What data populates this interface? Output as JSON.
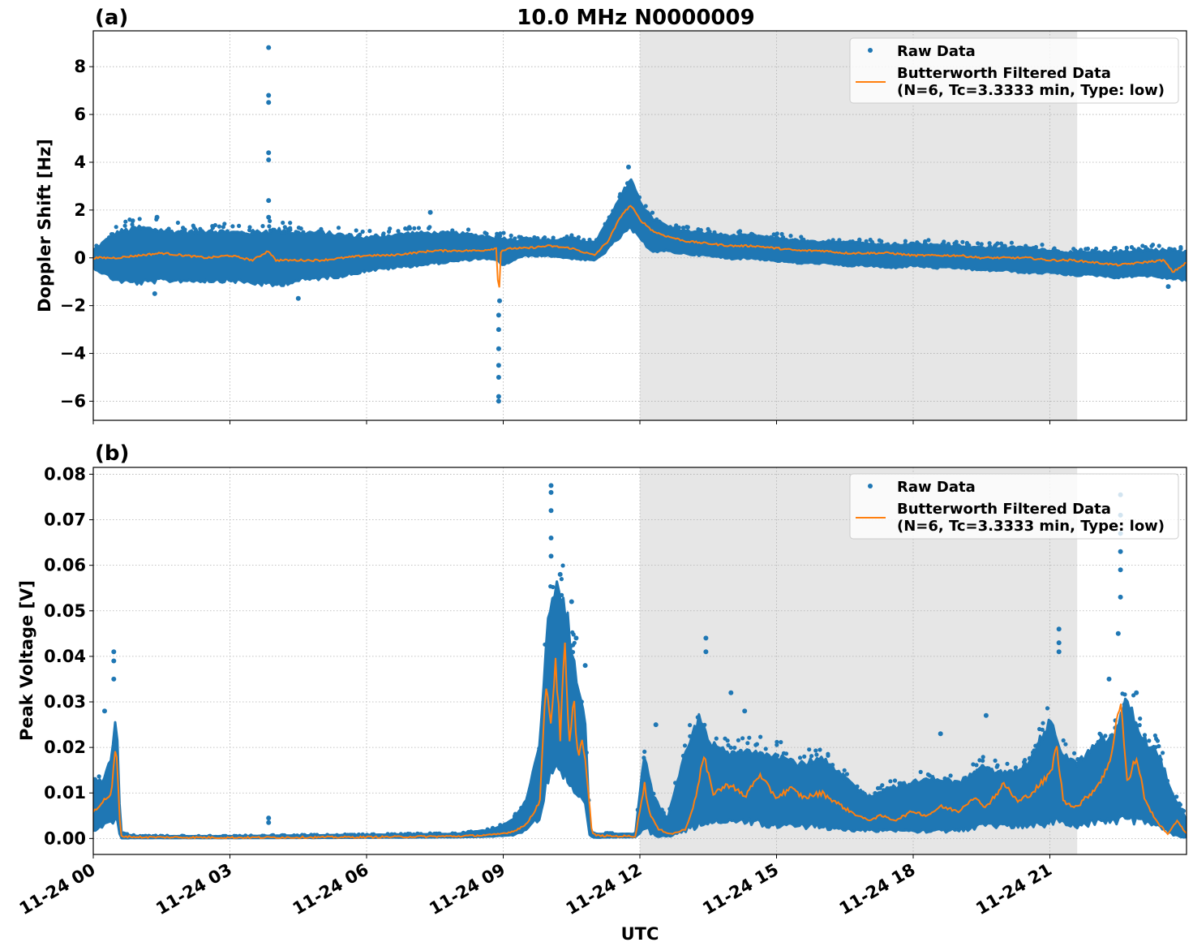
{
  "figure": {
    "title": "10.0 MHz N0000009",
    "xlabel": "UTC",
    "x_range_hours": [
      0,
      24
    ],
    "daytime_shading_hours": [
      12,
      21.6
    ],
    "legend_location": "upper right",
    "grid": true,
    "colors": {
      "raw": "#1f77b4",
      "filtered": "#ff7f0e",
      "shade": "#e6e6e6",
      "grid": "#b0b0b0"
    }
  },
  "chart_data": [
    {
      "id": "a",
      "panel_label": "(a)",
      "type": "scatter",
      "ylabel": "Doppler Shift [Hz]",
      "ylim": [
        -6.8,
        9.5
      ],
      "yticks": [
        -6,
        -4,
        -2,
        0,
        2,
        4,
        6,
        8
      ],
      "ytick_labels": [
        "−6",
        "−4",
        "−2",
        "0",
        "2",
        "4",
        "6",
        "8"
      ],
      "x_hours_ticks": [
        0,
        3,
        6,
        9,
        12,
        15,
        18,
        21
      ],
      "series": [
        {
          "name": "Raw Data",
          "kind": "points-envelope",
          "x_hours": [
            0,
            0.5,
            1,
            1.5,
            2,
            2.5,
            3,
            3.5,
            4,
            4.5,
            5,
            5.5,
            6,
            6.5,
            7,
            7.5,
            8,
            8.5,
            8.9,
            9.0,
            9.3,
            9.5,
            10,
            10.5,
            11,
            11.2,
            11.5,
            11.8,
            12,
            12.3,
            12.6,
            13,
            13.5,
            14,
            14.5,
            15,
            15.5,
            16,
            16.5,
            17,
            17.5,
            18,
            18.5,
            19,
            19.5,
            20,
            20.5,
            21,
            21.5,
            22,
            22.5,
            23,
            23.5,
            24
          ],
          "upper": [
            0.3,
            1.0,
            1.2,
            1.1,
            1.0,
            1.1,
            1.0,
            1.0,
            1.1,
            1.0,
            1.0,
            0.9,
            0.8,
            0.9,
            1.0,
            1.0,
            1.0,
            0.9,
            0.8,
            0.8,
            0.7,
            0.8,
            0.7,
            0.8,
            0.6,
            1.2,
            2.2,
            3.3,
            2.3,
            1.6,
            1.3,
            1.1,
            1.0,
            0.9,
            0.9,
            0.8,
            0.7,
            0.6,
            0.6,
            0.6,
            0.5,
            0.6,
            0.5,
            0.5,
            0.4,
            0.4,
            0.4,
            0.3,
            0.2,
            0.2,
            0.2,
            0.3,
            0.3,
            0.2
          ],
          "lower": [
            -0.4,
            -0.9,
            -1.0,
            -0.9,
            -0.9,
            -0.9,
            -0.9,
            -1.0,
            -1.1,
            -0.9,
            -0.8,
            -0.7,
            -0.5,
            -0.4,
            -0.3,
            -0.2,
            -0.1,
            0.0,
            -0.1,
            -0.3,
            0.0,
            0.1,
            0.1,
            0.0,
            -0.1,
            0.2,
            0.8,
            1.3,
            0.8,
            0.3,
            0.3,
            0.2,
            0.1,
            0.0,
            0.0,
            -0.1,
            -0.2,
            -0.2,
            -0.3,
            -0.3,
            -0.4,
            -0.3,
            -0.4,
            -0.4,
            -0.5,
            -0.5,
            -0.6,
            -0.6,
            -0.7,
            -0.7,
            -0.8,
            -0.7,
            -0.8,
            -0.9
          ],
          "outliers": [
            {
              "x": 3.85,
              "y": 8.8
            },
            {
              "x": 3.85,
              "y": 6.8
            },
            {
              "x": 3.85,
              "y": 6.5
            },
            {
              "x": 3.85,
              "y": 4.4
            },
            {
              "x": 3.85,
              "y": 4.1
            },
            {
              "x": 3.85,
              "y": 2.4
            },
            {
              "x": 3.85,
              "y": 1.7
            },
            {
              "x": 1.4,
              "y": 1.7
            },
            {
              "x": 7.4,
              "y": 1.9
            },
            {
              "x": 8.9,
              "y": -6.0
            },
            {
              "x": 8.9,
              "y": -5.8
            },
            {
              "x": 8.9,
              "y": -5.0
            },
            {
              "x": 8.9,
              "y": -4.5
            },
            {
              "x": 8.9,
              "y": -3.8
            },
            {
              "x": 8.9,
              "y": -3.0
            },
            {
              "x": 8.9,
              "y": -2.4
            },
            {
              "x": 8.92,
              "y": -1.8
            },
            {
              "x": 1.35,
              "y": -1.5
            },
            {
              "x": 4.5,
              "y": -1.7
            },
            {
              "x": 11.75,
              "y": 3.8
            },
            {
              "x": 23.6,
              "y": -1.2
            }
          ]
        },
        {
          "name": "Butterworth Filtered Data\n(N=6, Tc=3.3333 min, Type: low)",
          "kind": "line",
          "x_hours": [
            0,
            0.5,
            1,
            1.5,
            2,
            2.5,
            3,
            3.5,
            3.85,
            4,
            4.5,
            5,
            5.5,
            6,
            6.5,
            7,
            7.5,
            8,
            8.5,
            8.85,
            8.9,
            8.95,
            9.2,
            9.5,
            10,
            10.5,
            11,
            11.3,
            11.6,
            11.8,
            12,
            12.3,
            12.6,
            13,
            13.5,
            14,
            14.5,
            15,
            15.5,
            16,
            16.5,
            17,
            17.5,
            18,
            18.5,
            19,
            19.5,
            20,
            20.5,
            21,
            21.5,
            22,
            22.5,
            23,
            23.5,
            23.7,
            24
          ],
          "y": [
            0.0,
            0.0,
            0.1,
            0.2,
            0.1,
            0.0,
            0.1,
            -0.1,
            0.3,
            -0.1,
            -0.1,
            -0.1,
            0.0,
            0.1,
            0.1,
            0.2,
            0.3,
            0.3,
            0.3,
            0.4,
            -1.8,
            0.3,
            0.4,
            0.4,
            0.5,
            0.4,
            0.1,
            0.7,
            1.8,
            2.2,
            1.6,
            1.1,
            0.9,
            0.7,
            0.6,
            0.5,
            0.5,
            0.4,
            0.3,
            0.3,
            0.2,
            0.2,
            0.2,
            0.1,
            0.1,
            0.1,
            0.0,
            0.0,
            0.0,
            -0.1,
            -0.1,
            -0.2,
            -0.3,
            -0.2,
            -0.1,
            -0.6,
            -0.2
          ]
        }
      ]
    },
    {
      "id": "b",
      "panel_label": "(b)",
      "type": "scatter",
      "ylabel": "Peak Voltage [V]",
      "ylim": [
        -0.0035,
        0.0815
      ],
      "yticks": [
        0.0,
        0.01,
        0.02,
        0.03,
        0.04,
        0.05,
        0.06,
        0.07,
        0.08
      ],
      "ytick_labels": [
        "0.00",
        "0.01",
        "0.02",
        "0.03",
        "0.04",
        "0.05",
        "0.06",
        "0.07",
        "0.08"
      ],
      "x_hours_ticks": [
        0,
        3,
        6,
        9,
        12,
        15,
        18,
        21
      ],
      "xtick_labels": [
        "11-24 00",
        "11-24 03",
        "11-24 06",
        "11-24 09",
        "11-24 12",
        "11-24 15",
        "11-24 18",
        "11-24 21"
      ],
      "series": [
        {
          "name": "Raw Data",
          "kind": "points-envelope",
          "x_hours": [
            0,
            0.2,
            0.4,
            0.5,
            0.6,
            1,
            3,
            6,
            8,
            8.8,
            9.2,
            9.5,
            9.8,
            10.0,
            10.2,
            10.4,
            10.6,
            10.8,
            10.9,
            11.0,
            11.5,
            11.9,
            12.1,
            12.3,
            12.6,
            13.0,
            13.3,
            13.6,
            14.0,
            14.5,
            15.0,
            15.5,
            16.0,
            16.5,
            17.0,
            17.5,
            18.0,
            18.5,
            19.0,
            19.5,
            20.0,
            20.5,
            21.0,
            21.3,
            21.6,
            22.0,
            22.4,
            22.7,
            23.0,
            23.4,
            23.7,
            24
          ],
          "upper": [
            0.013,
            0.012,
            0.018,
            0.028,
            0.001,
            0.0005,
            0.0005,
            0.0008,
            0.001,
            0.002,
            0.004,
            0.008,
            0.02,
            0.05,
            0.055,
            0.048,
            0.035,
            0.025,
            0.002,
            0.001,
            0.001,
            0.001,
            0.018,
            0.009,
            0.004,
            0.018,
            0.026,
            0.02,
            0.018,
            0.019,
            0.018,
            0.016,
            0.017,
            0.013,
            0.009,
            0.011,
            0.012,
            0.013,
            0.012,
            0.015,
            0.014,
            0.016,
            0.025,
            0.018,
            0.016,
            0.02,
            0.022,
            0.03,
            0.022,
            0.018,
            0.009,
            0.004
          ],
          "lower": [
            0.002,
            0.003,
            0.004,
            0.005,
            0.0001,
            0.0001,
            0.0001,
            0.0002,
            0.0003,
            0.0005,
            0.0008,
            0.002,
            0.005,
            0.015,
            0.018,
            0.014,
            0.01,
            0.008,
            0.0005,
            0.0002,
            0.0003,
            0.0003,
            0.003,
            0.001,
            0.0005,
            0.002,
            0.004,
            0.004,
            0.004,
            0.004,
            0.003,
            0.003,
            0.003,
            0.002,
            0.002,
            0.002,
            0.002,
            0.002,
            0.002,
            0.003,
            0.003,
            0.003,
            0.004,
            0.004,
            0.003,
            0.004,
            0.004,
            0.005,
            0.004,
            0.003,
            0.001,
            0.0003
          ],
          "outliers": [
            {
              "x": 0.45,
              "y": 0.041
            },
            {
              "x": 0.45,
              "y": 0.039
            },
            {
              "x": 0.45,
              "y": 0.035
            },
            {
              "x": 0.25,
              "y": 0.028
            },
            {
              "x": 3.85,
              "y": 0.0045
            },
            {
              "x": 3.85,
              "y": 0.0035
            },
            {
              "x": 10.05,
              "y": 0.0775
            },
            {
              "x": 10.05,
              "y": 0.076
            },
            {
              "x": 10.05,
              "y": 0.072
            },
            {
              "x": 10.05,
              "y": 0.066
            },
            {
              "x": 10.05,
              "y": 0.062
            },
            {
              "x": 10.25,
              "y": 0.058
            },
            {
              "x": 10.5,
              "y": 0.052
            },
            {
              "x": 10.6,
              "y": 0.044
            },
            {
              "x": 10.8,
              "y": 0.038
            },
            {
              "x": 12.35,
              "y": 0.025
            },
            {
              "x": 13.45,
              "y": 0.044
            },
            {
              "x": 13.45,
              "y": 0.041
            },
            {
              "x": 14.0,
              "y": 0.032
            },
            {
              "x": 14.3,
              "y": 0.028
            },
            {
              "x": 21.2,
              "y": 0.046
            },
            {
              "x": 21.2,
              "y": 0.043
            },
            {
              "x": 21.2,
              "y": 0.041
            },
            {
              "x": 18.6,
              "y": 0.023
            },
            {
              "x": 19.6,
              "y": 0.027
            },
            {
              "x": 22.55,
              "y": 0.0755
            },
            {
              "x": 22.55,
              "y": 0.071
            },
            {
              "x": 22.55,
              "y": 0.067
            },
            {
              "x": 22.55,
              "y": 0.063
            },
            {
              "x": 22.55,
              "y": 0.059
            },
            {
              "x": 22.55,
              "y": 0.053
            },
            {
              "x": 22.5,
              "y": 0.045
            },
            {
              "x": 22.3,
              "y": 0.035
            },
            {
              "x": 22.9,
              "y": 0.032
            }
          ]
        },
        {
          "name": "Butterworth Filtered Data\n(N=6, Tc=3.3333 min, Type: low)",
          "kind": "line",
          "x_hours": [
            0,
            0.2,
            0.4,
            0.5,
            0.6,
            1,
            3,
            6,
            8,
            8.8,
            9.2,
            9.5,
            9.8,
            9.95,
            10.05,
            10.15,
            10.25,
            10.35,
            10.45,
            10.55,
            10.65,
            10.75,
            10.85,
            10.95,
            11.1,
            11.5,
            11.9,
            12.1,
            12.2,
            12.4,
            12.7,
            13.0,
            13.2,
            13.4,
            13.6,
            14.0,
            14.3,
            14.6,
            15.0,
            15.3,
            15.6,
            16.0,
            16.3,
            16.6,
            17.0,
            17.3,
            17.6,
            18.0,
            18.3,
            18.6,
            19.0,
            19.3,
            19.6,
            20.0,
            20.3,
            20.6,
            21.0,
            21.15,
            21.3,
            21.6,
            22.0,
            22.3,
            22.55,
            22.7,
            22.9,
            23.1,
            23.4,
            23.6,
            23.8,
            24
          ],
          "y": [
            0.006,
            0.008,
            0.01,
            0.021,
            0.0005,
            0.0003,
            0.0002,
            0.0003,
            0.0005,
            0.0008,
            0.0015,
            0.003,
            0.008,
            0.035,
            0.025,
            0.04,
            0.022,
            0.042,
            0.02,
            0.03,
            0.018,
            0.022,
            0.012,
            0.001,
            0.0006,
            0.0005,
            0.0005,
            0.012,
            0.006,
            0.002,
            0.001,
            0.002,
            0.008,
            0.018,
            0.01,
            0.012,
            0.009,
            0.014,
            0.009,
            0.011,
            0.009,
            0.01,
            0.008,
            0.006,
            0.004,
            0.005,
            0.004,
            0.006,
            0.005,
            0.007,
            0.006,
            0.009,
            0.007,
            0.012,
            0.008,
            0.01,
            0.014,
            0.02,
            0.008,
            0.007,
            0.011,
            0.016,
            0.031,
            0.012,
            0.018,
            0.008,
            0.003,
            0.001,
            0.004,
            0.001
          ]
        }
      ]
    }
  ],
  "legend": {
    "raw_label": "Raw Data",
    "filtered_label_line1": "Butterworth Filtered Data",
    "filtered_label_line2": "(N=6, Tc=3.3333 min, Type: low)"
  }
}
